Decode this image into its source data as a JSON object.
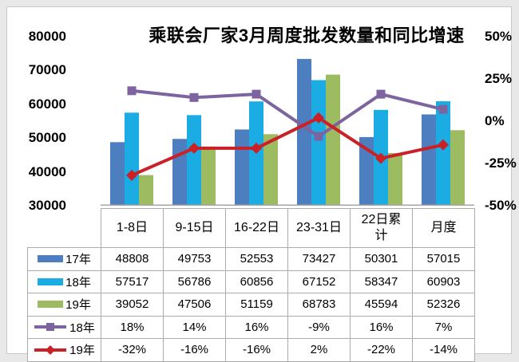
{
  "title": "乘联会厂家3月周度批发数量和同比增速",
  "colors": {
    "page_background": "#E8E8E8",
    "panel_border": "#C9C9C9",
    "table_border": "#ACACAC",
    "axis_line": "#A6A6A6",
    "text": "#000000"
  },
  "chart_data": {
    "type": "bar+line",
    "title": "乘联会厂家3月周度批发数量和同比增速",
    "categories": [
      "1-8日",
      "9-15日",
      "16-22日",
      "23-31日",
      "22日累计",
      "月度"
    ],
    "categories_display": [
      "1-8日",
      "9-15日",
      "16-22日",
      "23-31日",
      "22日累\n计",
      "月度"
    ],
    "bar_series": [
      {
        "name": "17年",
        "color": "#4D7EBF",
        "values": [
          48808,
          49753,
          52553,
          73427,
          50301,
          57015
        ]
      },
      {
        "name": "18年",
        "color": "#1BACE4",
        "values": [
          57517,
          56786,
          60856,
          67152,
          58347,
          60903
        ]
      },
      {
        "name": "19年",
        "color": "#9DBB61",
        "values": [
          39052,
          47506,
          51159,
          68783,
          45594,
          52326
        ]
      }
    ],
    "line_series": [
      {
        "name": "18年",
        "color": "#7E63A1",
        "marker": "square",
        "values": [
          18,
          14,
          16,
          -9,
          16,
          7
        ],
        "labels": [
          "18%",
          "14%",
          "16%",
          "-9%",
          "16%",
          "7%"
        ]
      },
      {
        "name": "19年",
        "color": "#CB2026",
        "marker": "diamond",
        "values": [
          -32,
          -16,
          -16,
          2,
          -22,
          -14
        ],
        "labels": [
          "-32%",
          "-16%",
          "-16%",
          "2%",
          "-22%",
          "-14%"
        ]
      }
    ],
    "y_left": {
      "min": 30000,
      "max": 80000,
      "tick_labels": [
        "80000",
        "70000",
        "60000",
        "50000",
        "40000",
        "30000"
      ]
    },
    "y_right": {
      "min": -50,
      "max": 50,
      "tick_labels": [
        "50%",
        "25%",
        "0%",
        "-25%",
        "-50%"
      ]
    },
    "grid": false,
    "legend_position": "table-left-column"
  }
}
